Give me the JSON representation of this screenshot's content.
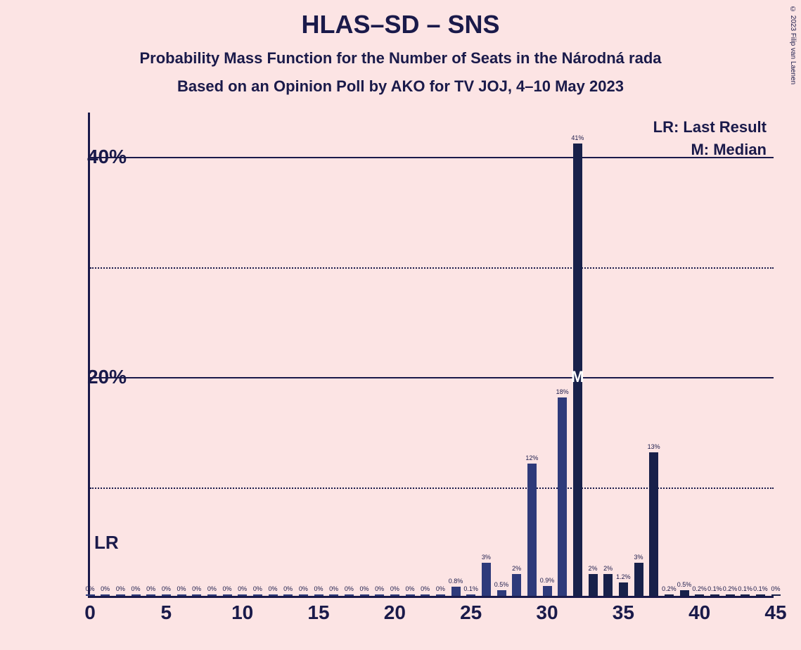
{
  "title": "HLAS–SD – SNS",
  "subtitle": "Probability Mass Function for the Number of Seats in the Národná rada",
  "source": "Based on an Opinion Poll by AKO for TV JOJ, 4–10 May 2023",
  "copyright": "© 2023 Filip van Laenen",
  "legend": {
    "lr": "LR: Last Result",
    "m": "M: Median"
  },
  "lr_label": "LR",
  "chart": {
    "type": "bar",
    "background_color": "#fce4e4",
    "axis_color": "#1a1a4a",
    "grid_solid_color": "#1a1a4a",
    "grid_dotted_color": "#1a1a4a",
    "bar_color": "#2e3a7a",
    "bar_color_dark": "#18214a",
    "text_color": "#1a1a4a",
    "x_min": 0,
    "x_max": 45,
    "x_ticks": [
      0,
      5,
      10,
      15,
      20,
      25,
      30,
      35,
      40,
      45
    ],
    "y_min": 0,
    "y_max": 44,
    "y_ticks": [
      {
        "value": 40,
        "label": "40%",
        "style": "solid"
      },
      {
        "value": 30,
        "label": "",
        "style": "dotted"
      },
      {
        "value": 20,
        "label": "20%",
        "style": "solid"
      },
      {
        "value": 10,
        "label": "",
        "style": "dotted"
      }
    ],
    "bar_width_ratio": 0.6,
    "lr_seat": 0,
    "median_seat": 32,
    "median_y_percent": 20,
    "bars": [
      {
        "seat": 0,
        "value": 0,
        "label": "0%",
        "min_h": true
      },
      {
        "seat": 1,
        "value": 0,
        "label": "0%",
        "min_h": true
      },
      {
        "seat": 2,
        "value": 0,
        "label": "0%",
        "min_h": true
      },
      {
        "seat": 3,
        "value": 0,
        "label": "0%",
        "min_h": true
      },
      {
        "seat": 4,
        "value": 0,
        "label": "0%",
        "min_h": true
      },
      {
        "seat": 5,
        "value": 0,
        "label": "0%",
        "min_h": true
      },
      {
        "seat": 6,
        "value": 0,
        "label": "0%",
        "min_h": true
      },
      {
        "seat": 7,
        "value": 0,
        "label": "0%",
        "min_h": true
      },
      {
        "seat": 8,
        "value": 0,
        "label": "0%",
        "min_h": true
      },
      {
        "seat": 9,
        "value": 0,
        "label": "0%",
        "min_h": true
      },
      {
        "seat": 10,
        "value": 0,
        "label": "0%",
        "min_h": true
      },
      {
        "seat": 11,
        "value": 0,
        "label": "0%",
        "min_h": true
      },
      {
        "seat": 12,
        "value": 0,
        "label": "0%",
        "min_h": true
      },
      {
        "seat": 13,
        "value": 0,
        "label": "0%",
        "min_h": true
      },
      {
        "seat": 14,
        "value": 0,
        "label": "0%",
        "min_h": true
      },
      {
        "seat": 15,
        "value": 0,
        "label": "0%",
        "min_h": true
      },
      {
        "seat": 16,
        "value": 0,
        "label": "0%",
        "min_h": true
      },
      {
        "seat": 17,
        "value": 0,
        "label": "0%",
        "min_h": true
      },
      {
        "seat": 18,
        "value": 0,
        "label": "0%",
        "min_h": true
      },
      {
        "seat": 19,
        "value": 0,
        "label": "0%",
        "min_h": true
      },
      {
        "seat": 20,
        "value": 0,
        "label": "0%",
        "min_h": true
      },
      {
        "seat": 21,
        "value": 0,
        "label": "0%",
        "min_h": true
      },
      {
        "seat": 22,
        "value": 0,
        "label": "0%",
        "min_h": true
      },
      {
        "seat": 23,
        "value": 0,
        "label": "0%",
        "min_h": true
      },
      {
        "seat": 24,
        "value": 0.8,
        "label": "0.8%"
      },
      {
        "seat": 25,
        "value": 0.1,
        "label": "0.1%",
        "min_h": true
      },
      {
        "seat": 26,
        "value": 3,
        "label": "3%"
      },
      {
        "seat": 27,
        "value": 0.5,
        "label": "0.5%"
      },
      {
        "seat": 28,
        "value": 2,
        "label": "2%"
      },
      {
        "seat": 29,
        "value": 12,
        "label": "12%"
      },
      {
        "seat": 30,
        "value": 0.9,
        "label": "0.9%"
      },
      {
        "seat": 31,
        "value": 18,
        "label": "18%"
      },
      {
        "seat": 32,
        "value": 41,
        "label": "41%",
        "dark": true
      },
      {
        "seat": 33,
        "value": 2,
        "label": "2%",
        "dark": true
      },
      {
        "seat": 34,
        "value": 2,
        "label": "2%",
        "dark": true
      },
      {
        "seat": 35,
        "value": 1.2,
        "label": "1.2%",
        "dark": true
      },
      {
        "seat": 36,
        "value": 3,
        "label": "3%",
        "dark": true
      },
      {
        "seat": 37,
        "value": 13,
        "label": "13%",
        "dark": true
      },
      {
        "seat": 38,
        "value": 0.2,
        "label": "0.2%",
        "dark": true,
        "min_h": true
      },
      {
        "seat": 39,
        "value": 0.5,
        "label": "0.5%",
        "dark": true
      },
      {
        "seat": 40,
        "value": 0.2,
        "label": "0.2%",
        "dark": true,
        "min_h": true
      },
      {
        "seat": 41,
        "value": 0.1,
        "label": "0.1%",
        "dark": true,
        "min_h": true
      },
      {
        "seat": 42,
        "value": 0.2,
        "label": "0.2%",
        "dark": true,
        "min_h": true
      },
      {
        "seat": 43,
        "value": 0.1,
        "label": "0.1%",
        "dark": true,
        "min_h": true
      },
      {
        "seat": 44,
        "value": 0.1,
        "label": "0.1%",
        "dark": true,
        "min_h": true
      },
      {
        "seat": 45,
        "value": 0,
        "label": "0%",
        "dark": true,
        "min_h": true
      }
    ]
  }
}
